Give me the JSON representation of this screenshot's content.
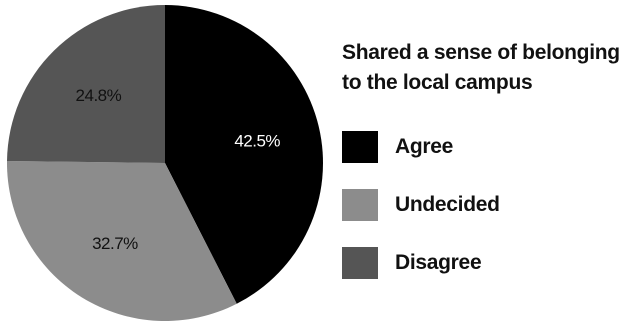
{
  "chart_data": {
    "type": "pie",
    "title": "Shared a sense of belonging to the local campus",
    "title_lines": [
      "Shared a sense of belonging",
      "to the local campus"
    ],
    "categories": [
      "Agree",
      "Undecided",
      "Disagree"
    ],
    "values": [
      42.5,
      32.7,
      24.8
    ],
    "value_labels": [
      "42.5%",
      "32.7%",
      "24.8%"
    ],
    "colors": [
      "#000000",
      "#8c8c8c",
      "#555555"
    ],
    "label_colors": [
      "#ffffff",
      "#111111",
      "#111111"
    ],
    "start": "12 o'clock",
    "direction": "clockwise",
    "legend_position": "right"
  }
}
